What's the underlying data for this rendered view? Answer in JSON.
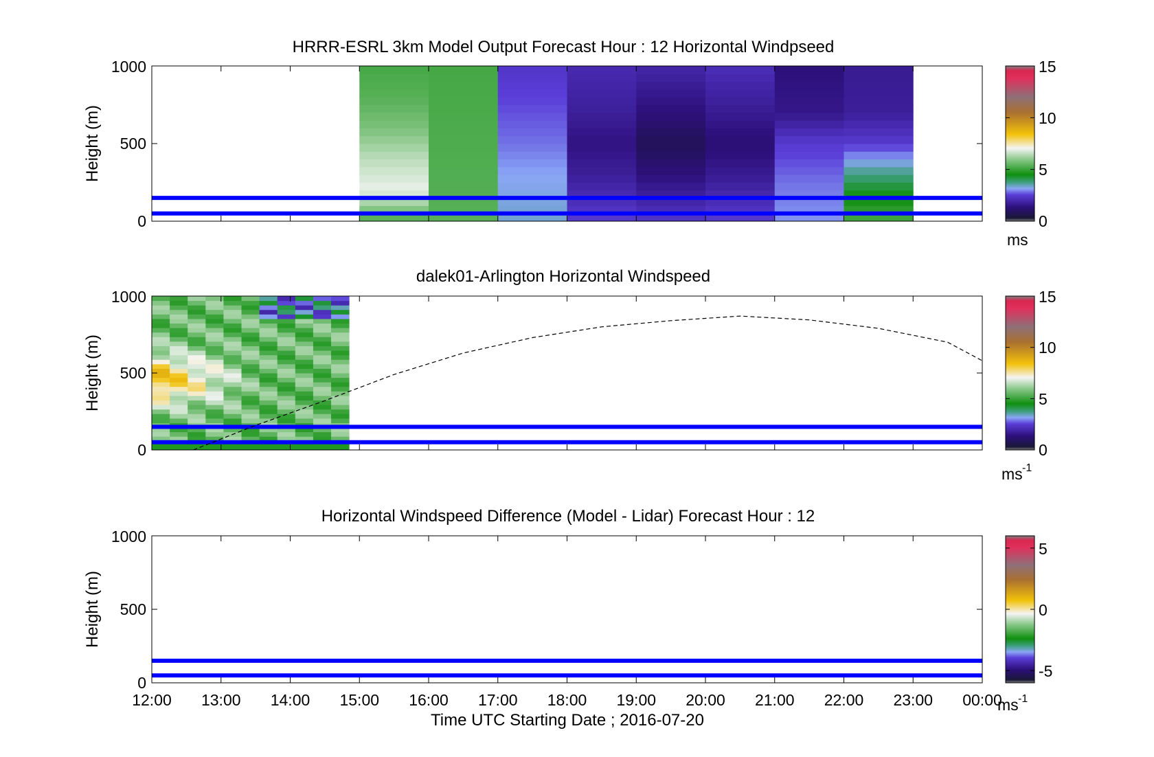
{
  "chart_data": [
    {
      "type": "heatmap",
      "title": "HRRR-ESRL 3km Model Output   Forecast Hour : 12 Horizontal Windpseed",
      "ylabel": "Height (m)",
      "ylim": [
        0,
        1000
      ],
      "yticks": [
        "0",
        "500",
        "1000"
      ],
      "colorbar": {
        "ticks": [
          "0",
          "5",
          "10",
          "15"
        ],
        "range": [
          0,
          15
        ],
        "unit": "ms"
      },
      "lines": [
        {
          "height": 50,
          "color": "#0000ff"
        },
        {
          "height": 150,
          "color": "#0000ff"
        }
      ],
      "cells": [
        {
          "x0": 15,
          "x1": 16,
          "profile": [
            [
              0,
              5.0
            ],
            [
              200,
              6.8
            ],
            [
              400,
              6.3
            ],
            [
              600,
              5.6
            ],
            [
              800,
              5.2
            ],
            [
              1000,
              5.0
            ]
          ]
        },
        {
          "x0": 16,
          "x1": 17,
          "profile": [
            [
              0,
              5.2
            ],
            [
              500,
              5.1
            ],
            [
              1000,
              5.0
            ]
          ]
        },
        {
          "x0": 17,
          "x1": 18,
          "profile": [
            [
              0,
              3.2
            ],
            [
              300,
              3.0
            ],
            [
              500,
              2.7
            ],
            [
              700,
              2.5
            ],
            [
              1000,
              2.2
            ]
          ]
        },
        {
          "x0": 18,
          "x1": 19,
          "profile": [
            [
              0,
              2.3
            ],
            [
              300,
              1.6
            ],
            [
              500,
              1.3
            ],
            [
              700,
              1.6
            ],
            [
              1000,
              1.9
            ]
          ]
        },
        {
          "x0": 19,
          "x1": 20,
          "profile": [
            [
              0,
              2.2
            ],
            [
              300,
              1.2
            ],
            [
              500,
              0.6
            ],
            [
              700,
              1.2
            ],
            [
              1000,
              1.8
            ]
          ]
        },
        {
          "x0": 20,
          "x1": 21,
          "profile": [
            [
              0,
              2.3
            ],
            [
              300,
              1.5
            ],
            [
              500,
              1.1
            ],
            [
              700,
              1.5
            ],
            [
              1000,
              2.0
            ]
          ]
        },
        {
          "x0": 21,
          "x1": 22,
          "profile": [
            [
              0,
              2.9
            ],
            [
              250,
              2.7
            ],
            [
              500,
              2.3
            ],
            [
              700,
              1.4
            ],
            [
              1000,
              1.2
            ]
          ]
        },
        {
          "x0": 22,
          "x1": 23,
          "profile": [
            [
              0,
              5.0
            ],
            [
              200,
              4.2
            ],
            [
              350,
              3.3
            ],
            [
              500,
              2.3
            ],
            [
              700,
              1.6
            ],
            [
              1000,
              1.5
            ]
          ]
        }
      ]
    },
    {
      "type": "heatmap",
      "title": "dalek01-Arlington  Horizontal Windspeed",
      "ylabel": "Height (m)",
      "ylim": [
        0,
        1000
      ],
      "yticks": [
        "0",
        "500",
        "1000"
      ],
      "colorbar": {
        "ticks": [
          "0",
          "5",
          "10",
          "15"
        ],
        "range": [
          0,
          15
        ],
        "unit": "ms",
        "unit_sup": "-1"
      },
      "lines": [
        {
          "height": 50,
          "color": "#0000ff"
        },
        {
          "height": 150,
          "color": "#0000ff"
        }
      ],
      "observed_time_range": [
        12,
        14.85
      ],
      "curve": {
        "style": "dashed",
        "x": [
          12.6,
          13.5,
          14.5,
          15.5,
          16.5,
          17.5,
          18.5,
          19.5,
          20.5,
          21.5,
          22.5,
          23.5,
          24
        ],
        "y": [
          0,
          160,
          320,
          490,
          630,
          730,
          800,
          840,
          870,
          845,
          790,
          700,
          580
        ]
      }
    },
    {
      "type": "heatmap",
      "title": "Horizontal Windspeed Difference (Model - Lidar) Forecast Hour : 12",
      "ylabel": "Height (m)",
      "xlabel": "Time UTC  Starting Date ; 2016-07-20",
      "ylim": [
        0,
        1000
      ],
      "yticks": [
        "0",
        "500",
        "1000"
      ],
      "xticks": [
        "12:00",
        "13:00",
        "14:00",
        "15:00",
        "16:00",
        "17:00",
        "18:00",
        "19:00",
        "20:00",
        "21:00",
        "22:00",
        "23:00",
        "00:00"
      ],
      "xlim": [
        12,
        24
      ],
      "colorbar": {
        "ticks": [
          "-5",
          "0",
          "5"
        ],
        "range": [
          -6,
          6
        ],
        "unit": "ms",
        "unit_sup": "-1"
      },
      "lines": [
        {
          "height": 50,
          "color": "#0000ff"
        },
        {
          "height": 150,
          "color": "#0000ff"
        }
      ]
    }
  ]
}
